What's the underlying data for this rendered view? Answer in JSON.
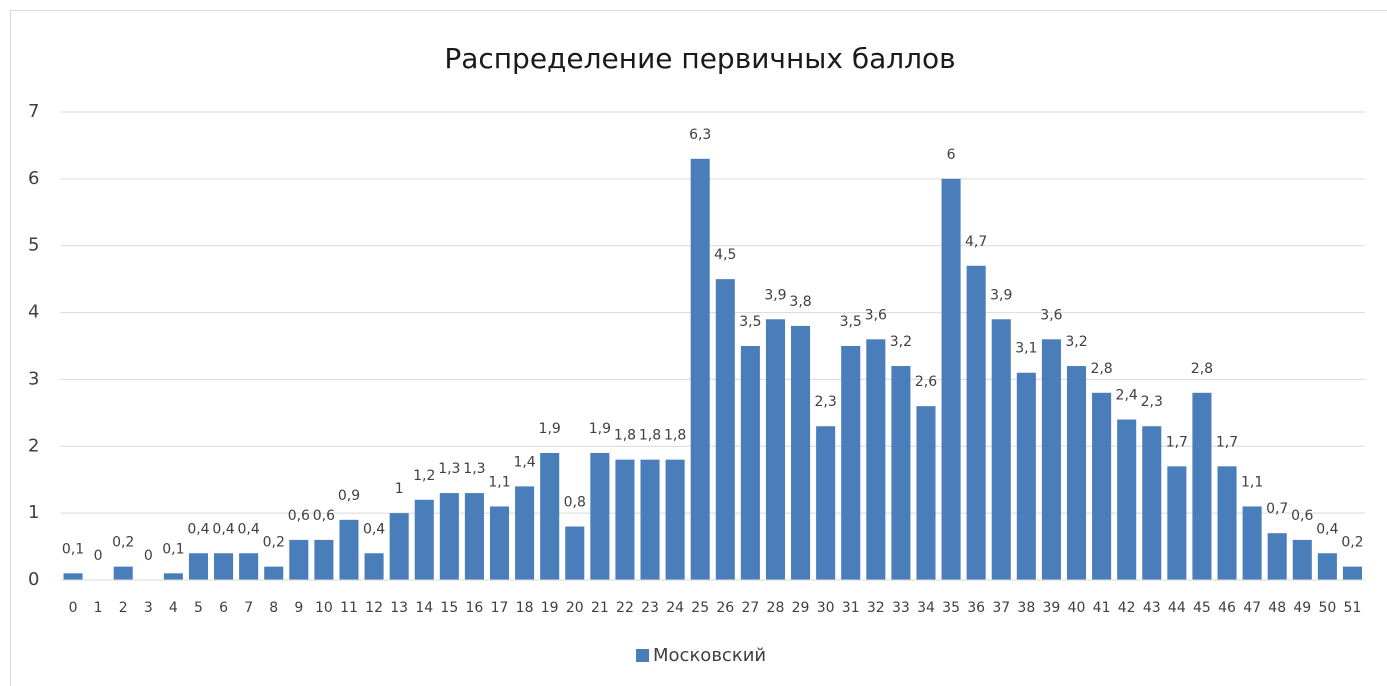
{
  "chart_data": {
    "type": "bar",
    "title": "Распределение первичных баллов",
    "categories": [
      "0",
      "1",
      "2",
      "3",
      "4",
      "5",
      "6",
      "7",
      "8",
      "9",
      "10",
      "11",
      "12",
      "13",
      "14",
      "15",
      "16",
      "17",
      "18",
      "19",
      "20",
      "21",
      "22",
      "23",
      "24",
      "25",
      "26",
      "27",
      "28",
      "29",
      "30",
      "31",
      "32",
      "33",
      "34",
      "35",
      "36",
      "37",
      "38",
      "39",
      "40",
      "41",
      "42",
      "43",
      "44",
      "45",
      "46",
      "47",
      "48",
      "49",
      "50",
      "51"
    ],
    "series": [
      {
        "name": "Московский",
        "color": "#4a7ebb",
        "values": [
          0.1,
          0,
          0.2,
          0,
          0.1,
          0.4,
          0.4,
          0.4,
          0.2,
          0.6,
          0.6,
          0.9,
          0.4,
          1,
          1.2,
          1.3,
          1.3,
          1.1,
          1.4,
          1.9,
          0.8,
          1.9,
          1.8,
          1.8,
          1.8,
          6.3,
          4.5,
          3.5,
          3.9,
          3.8,
          2.3,
          3.5,
          3.6,
          3.2,
          2.6,
          6,
          4.7,
          3.9,
          3.1,
          3.6,
          3.2,
          2.8,
          2.4,
          2.3,
          1.7,
          2.8,
          1.7,
          1.1,
          0.7,
          0.6,
          0.4,
          0.2
        ],
        "value_labels": [
          "0,1",
          "0",
          "0,2",
          "0",
          "0,1",
          "0,4",
          "0,4",
          "0,4",
          "0,2",
          "0,6",
          "0,6",
          "0,9",
          "0,4",
          "1",
          "1,2",
          "1,3",
          "1,3",
          "1,1",
          "1,4",
          "1,9",
          "0,8",
          "1,9",
          "1,8",
          "1,8",
          "1,8",
          "6,3",
          "4,5",
          "3,5",
          "3,9",
          "3,8",
          "2,3",
          "3,5",
          "3,6",
          "3,2",
          "2,6",
          "6",
          "4,7",
          "3,9",
          "3,1",
          "3,6",
          "3,2",
          "2,8",
          "2,4",
          "2,3",
          "1,7",
          "2,8",
          "1,7",
          "1,1",
          "0,7",
          "0,6",
          "0,4",
          "0,2"
        ]
      }
    ],
    "ylim": [
      0,
      7
    ],
    "yticks": [
      0,
      1,
      2,
      3,
      4,
      5,
      6,
      7
    ],
    "grid": true,
    "legend": "bottom"
  }
}
